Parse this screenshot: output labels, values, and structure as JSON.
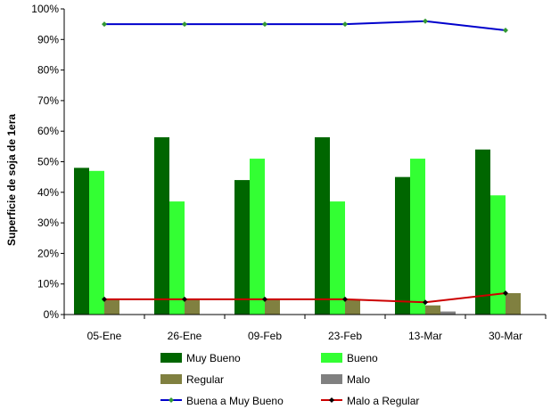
{
  "chart_data": {
    "type": "bar",
    "ylabel": "Superficie de soja de 1era",
    "xlabel": "",
    "ylim": [
      0,
      100
    ],
    "yticks": [
      "0%",
      "10%",
      "20%",
      "30%",
      "40%",
      "50%",
      "60%",
      "70%",
      "80%",
      "90%",
      "100%"
    ],
    "categories": [
      "05-Ene",
      "26-Ene",
      "09-Feb",
      "23-Feb",
      "13-Mar",
      "30-Mar"
    ],
    "series": [
      {
        "name": "Muy Bueno",
        "kind": "bar",
        "color": "#006600",
        "values": [
          48,
          58,
          44,
          58,
          45,
          54
        ]
      },
      {
        "name": "Bueno",
        "kind": "bar",
        "color": "#33ff33",
        "values": [
          47,
          37,
          51,
          37,
          51,
          39
        ]
      },
      {
        "name": "Regular",
        "kind": "bar",
        "color": "#808040",
        "values": [
          5,
          5,
          5,
          5,
          3,
          7
        ]
      },
      {
        "name": "Malo",
        "kind": "bar",
        "color": "#808080",
        "values": [
          0,
          0,
          0,
          0,
          1,
          0
        ]
      },
      {
        "name": "Buena a Muy Bueno",
        "kind": "line",
        "color": "#0000cc",
        "marker_color": "#339933",
        "values": [
          95,
          95,
          95,
          95,
          96,
          93
        ]
      },
      {
        "name": "Malo a Regular",
        "kind": "line",
        "color": "#cc0000",
        "marker_color": "#000000",
        "values": [
          5,
          5,
          5,
          5,
          4,
          7
        ]
      }
    ],
    "grid": false,
    "legend_position": "bottom"
  }
}
